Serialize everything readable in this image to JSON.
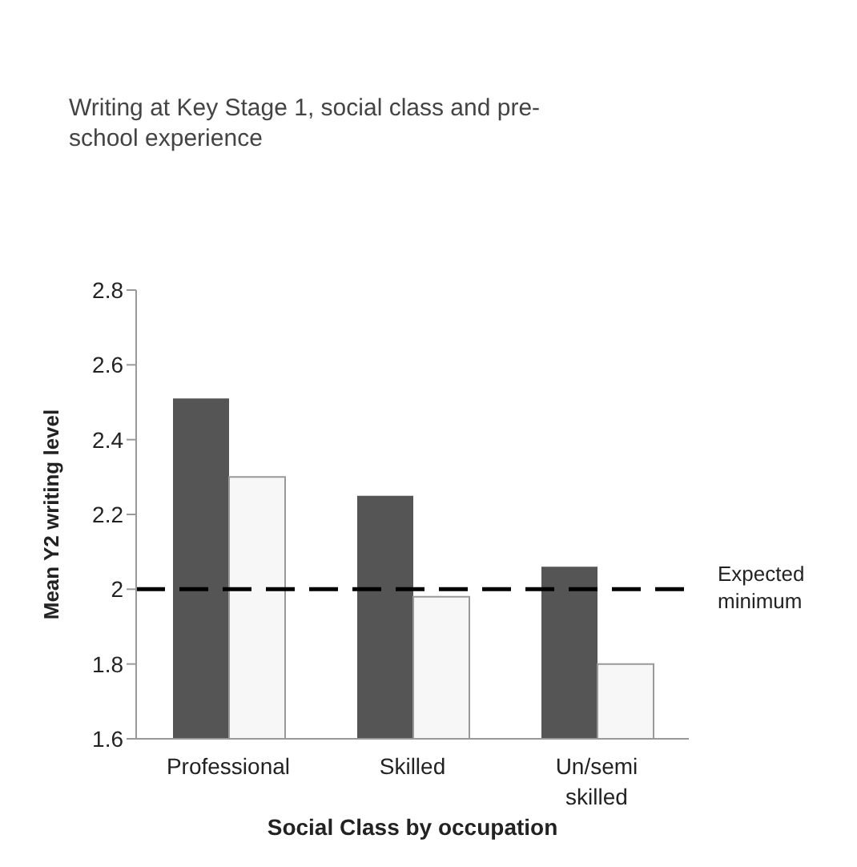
{
  "chart_data": {
    "type": "bar",
    "title": "Writing at Key Stage 1, social class and pre-school experience",
    "xlabel": "Social Class by occupation",
    "ylabel": "Mean Y2 writing level",
    "categories": [
      "Professional",
      "Skilled",
      "Un/semi skilled"
    ],
    "series": [
      {
        "color": "#555555",
        "values": [
          2.51,
          2.25,
          2.06
        ]
      },
      {
        "color": "#f7f7f7",
        "values": [
          2.3,
          1.98,
          1.8
        ]
      }
    ],
    "ylim": [
      1.6,
      2.8
    ],
    "yticks": [
      1.6,
      1.8,
      2,
      2.2,
      2.4,
      2.6,
      2.8
    ],
    "ref_lines": [
      {
        "axis": "y",
        "value": 2,
        "label": "Expected minimum",
        "color": "#000000",
        "line_style": "dashed"
      }
    ],
    "grid": false,
    "legend": false
  }
}
